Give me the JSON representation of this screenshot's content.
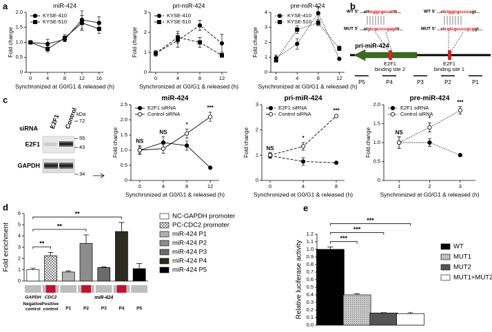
{
  "panel_labels": [
    "a",
    "b",
    "c",
    "d",
    "e"
  ],
  "diagram": {
    "sequences": [
      {
        "label": "WT 5'",
        "parts": [
          "...att",
          "tcggcgccatt",
          "tt..."
        ]
      },
      {
        "label": "MUT 5'",
        "parts": [
          "...at",
          "gtcgccccgagt",
          "tt..."
        ]
      },
      {
        "label": "WT 5'",
        "parts": [
          "...ct",
          "ctggcgcccca",
          "gt..."
        ]
      },
      {
        "label": "MUT 5'",
        "parts": [
          "...ct",
          "cgtcgccccgcg",
          "gt..."
        ]
      }
    ],
    "gene": "pri-miR-424",
    "sites": [
      {
        "name": "E2F1",
        "detail": "binding site 2"
      },
      {
        "name": "E2F1",
        "detail": "binding site 1"
      }
    ],
    "primers": [
      "P5",
      "P4",
      "P3",
      "P2",
      "P1"
    ]
  },
  "blot": {
    "treatment": "siRNA",
    "lanes": [
      "E2F1",
      "Control"
    ],
    "unit": "kDa",
    "markers": [
      "72",
      "55",
      "43",
      "34"
    ],
    "proteins": [
      "E2F1",
      "GAPDH"
    ]
  },
  "chart_data": [
    {
      "type": "line",
      "title": "miR-424",
      "xlabel": "Synchronized at G0/G1 & released (h)",
      "ylabel": "Fold change",
      "line_style": "solid",
      "legend": "upper left",
      "x": [
        0,
        4,
        8,
        12,
        16
      ],
      "xlim": [
        -1,
        17
      ],
      "xticks": [
        0,
        4,
        8,
        12,
        16
      ],
      "ylim": [
        0,
        2
      ],
      "yticks": [
        0,
        0.5,
        {
          "value": 1,
          "label": "1.0"
        },
        1.5,
        {
          "value": 2,
          "label": "2.0"
        }
      ],
      "series": [
        {
          "name": "KYSE-410",
          "color": "#000000",
          "marker": "circle",
          "values": [
            1.0,
            0.95,
            1.1,
            1.75,
            1.65
          ],
          "errors": [
            0.05,
            0.15,
            0.08,
            0.3,
            0.2
          ]
        },
        {
          "name": "KYSE-510",
          "color": "#000000",
          "marker": "square",
          "values": [
            1.0,
            0.78,
            1.15,
            1.65,
            1.45
          ],
          "errors": [
            0.05,
            0.1,
            0.1,
            0.25,
            0.15
          ]
        }
      ]
    },
    {
      "type": "line",
      "title": "pri-miR-424",
      "xlabel": "Synchronized at G0/G1 & released (h)",
      "ylabel": "Fold change",
      "line_style": "dashed",
      "legend": "upper left",
      "x": [
        0,
        4,
        8,
        12
      ],
      "xlim": [
        -1,
        13
      ],
      "xticks": [
        0,
        4,
        8,
        12
      ],
      "ylim": [
        0,
        3
      ],
      "yticks": [
        0,
        1,
        2,
        3
      ],
      "series": [
        {
          "name": "KYSE-410",
          "color": "#000000",
          "marker": "circle",
          "values": [
            0.95,
            1.6,
            2.35,
            1.45
          ],
          "errors": [
            0.15,
            0.35,
            0.25,
            0.45
          ]
        },
        {
          "name": "KYSE-510",
          "color": "#000000",
          "marker": "square",
          "values": [
            0.95,
            1.75,
            1.5,
            0.85
          ],
          "errors": [
            0.1,
            0.3,
            0.25,
            0.1
          ]
        }
      ]
    },
    {
      "type": "line",
      "title": "pre-miR-424",
      "xlabel": "Synchronized at G0/G1 & released (h)",
      "ylabel": "Fold change",
      "line_style": "dotted",
      "legend": "upper left",
      "x": [
        0,
        4,
        8,
        12
      ],
      "xlim": [
        -1,
        13
      ],
      "xticks": [
        0,
        4,
        8,
        12
      ],
      "ylim": [
        0,
        4
      ],
      "yticks": [
        0,
        1,
        2,
        3,
        4
      ],
      "series": [
        {
          "name": "KYSE-410",
          "color": "#000000",
          "marker": "circle",
          "values": [
            0.95,
            1.9,
            3.95,
            0.9
          ],
          "errors": [
            0.2,
            0.35,
            0.45,
            0.05
          ]
        },
        {
          "name": "KYSE-510",
          "color": "#000000",
          "marker": "square",
          "values": [
            0.8,
            2.85,
            3.3,
            1.6
          ],
          "errors": [
            0.1,
            0.25,
            0.2,
            0.15
          ]
        }
      ]
    },
    {
      "type": "line",
      "title": "miR-424",
      "xlabel": "Synchronized at G0/G1 & released (h)",
      "ylabel": "Fold change",
      "line_style": "solid",
      "legend": "upper left",
      "x": [
        0,
        4,
        8,
        12
      ],
      "xlim": [
        -1.5,
        13.5
      ],
      "xticks": [
        0,
        4,
        8,
        12
      ],
      "ylim": [
        0,
        2.5
      ],
      "yticks": [
        0,
        0.5,
        {
          "value": 1,
          "label": "1.0"
        },
        1.5,
        {
          "value": 2,
          "label": "2.0"
        },
        2.5
      ],
      "series": [
        {
          "name": "E2F1 siRNA",
          "color": "#000000",
          "marker": "circle",
          "filled": true,
          "values": [
            1.0,
            1.25,
            1.15,
            0.42
          ],
          "errors": [
            0.15,
            0.2,
            0.15,
            0.02
          ]
        },
        {
          "name": "Control siRNA",
          "color": "#000000",
          "marker": "circle",
          "filled": false,
          "values": [
            1.0,
            1.05,
            1.55,
            2.1
          ],
          "errors": [
            0.1,
            0.15,
            0.15,
            0.15
          ]
        }
      ],
      "annotations": [
        {
          "text": "NS",
          "x": 0
        },
        {
          "text": "NS",
          "x": 4
        },
        {
          "text": "*",
          "x": 8
        },
        {
          "text": "***",
          "x": 12
        }
      ]
    },
    {
      "type": "line",
      "title": "pri-miR-424",
      "xlabel": "Synchronized at G0/G1 & released (h)",
      "ylabel": "Fold change",
      "line_style": "dashed",
      "legend": "upper left",
      "x": [
        0,
        4,
        8
      ],
      "xlim": [
        -1,
        9
      ],
      "xticks": [
        0,
        4,
        8
      ],
      "ylim": [
        0,
        3
      ],
      "yticks": [
        0,
        1,
        2,
        3
      ],
      "series": [
        {
          "name": "E2F1 siRNA",
          "color": "#000000",
          "marker": "circle",
          "filled": true,
          "values": [
            0.98,
            0.75,
            0.7
          ],
          "errors": [
            0.1,
            0.15,
            0.03
          ]
        },
        {
          "name": "Control siRNA",
          "color": "#000000",
          "marker": "circle",
          "filled": false,
          "values": [
            1.0,
            1.35,
            2.55
          ],
          "errors": [
            0.1,
            0.15,
            0.05
          ]
        }
      ],
      "annotations": [
        {
          "text": "NS",
          "x": 0
        },
        {
          "text": "*",
          "x": 4
        },
        {
          "text": "***",
          "x": 8
        }
      ]
    },
    {
      "type": "line",
      "title": "pre-miR-424",
      "xlabel": "Synchronized at G0/G1 & released (h)",
      "ylabel": "Fold change",
      "line_style": "dotted",
      "legend": "upper left",
      "x": [
        1,
        2,
        3
      ],
      "xlim": [
        0.5,
        3.5
      ],
      "xticks": [
        1,
        2,
        3
      ],
      "ylim": [
        0,
        2
      ],
      "yticks": [
        0,
        0.5,
        {
          "value": 1,
          "label": "1.0"
        },
        1.5,
        {
          "value": 2,
          "label": "2.0"
        }
      ],
      "series": [
        {
          "name": "E2F1 siRNA",
          "color": "#000000",
          "marker": "circle",
          "filled": true,
          "values": [
            1.0,
            1.0,
            0.67
          ],
          "errors": [
            0.15,
            0.1,
            0.02
          ]
        },
        {
          "name": "Control siRNA",
          "color": "#000000",
          "marker": "circle",
          "filled": false,
          "values": [
            1.0,
            1.4,
            1.85
          ],
          "errors": [
            0.15,
            0.12,
            0.1
          ]
        }
      ],
      "annotations": [
        {
          "text": "NS",
          "x": 1
        },
        {
          "text": "*",
          "x": 2
        },
        {
          "text": "***",
          "x": 3
        }
      ]
    },
    {
      "type": "bar",
      "ylabel": "Fold enrichment",
      "ylim": [
        0,
        6
      ],
      "yticks": [
        0,
        1,
        2,
        3,
        4,
        5,
        6
      ],
      "legend": "right",
      "series": [
        {
          "name": "NC-GAPDH promoter",
          "color": "#ffffff",
          "values": [
            1.0
          ],
          "errors": [
            0.15
          ]
        },
        {
          "name": "PC-CDC2 promoter",
          "color": "#ffffff",
          "pattern": "crosshatch",
          "values": [
            2.25
          ],
          "errors": [
            0.3
          ]
        },
        {
          "name": "miR-424 P1",
          "color": "#b0b0b0",
          "values": [
            0.8
          ],
          "errors": [
            0.1
          ]
        },
        {
          "name": "miR-424 P2",
          "color": "#8c8c8c",
          "values": [
            3.35
          ],
          "errors": [
            0.75
          ]
        },
        {
          "name": "miR-424 P3",
          "color": "#6b6b6b",
          "values": [
            1.2
          ],
          "errors": [
            0.05
          ]
        },
        {
          "name": "miR-424 P4",
          "color": "#2d2d1e",
          "values": [
            4.4
          ],
          "errors": [
            0.8
          ]
        },
        {
          "name": "miR-424 P5",
          "color": "#000000",
          "values": [
            1.1
          ],
          "errors": [
            0.45
          ]
        }
      ],
      "brackets": [
        {
          "text": "**",
          "from": "NC-GAPDH promoter",
          "to": "PC-CDC2 promoter"
        },
        {
          "text": "**",
          "from": "NC-GAPDH promoter",
          "to": "miR-424 P2"
        },
        {
          "text": "**",
          "from": "NC-GAPDH promoter",
          "to": "miR-424 P4"
        }
      ],
      "track": {
        "labels": [
          {
            "name": "GAPDH",
            "note": "Negative control"
          },
          {
            "name": "CDC2",
            "note": "Positive control"
          },
          {
            "name": "P1"
          },
          {
            "name": "P2"
          },
          {
            "name": "P3"
          },
          {
            "name": "P4"
          },
          {
            "name": "P5"
          }
        ],
        "group": "miR-424"
      }
    },
    {
      "type": "bar",
      "ylabel": "Relative luciferase activity",
      "ylim": [
        0,
        1.2
      ],
      "yticks": [
        {
          "value": 0,
          "label": "0.0"
        },
        0.1,
        0.2,
        0.3,
        0.4,
        0.5,
        0.6,
        0.7,
        0.8,
        0.9,
        {
          "value": 1,
          "label": "1.0"
        },
        1.1,
        1.2
      ],
      "legend": "right",
      "series": [
        {
          "name": "WT",
          "color": "#000000",
          "values": [
            1.0
          ],
          "errors": [
            0.03
          ]
        },
        {
          "name": "MUT1",
          "color": "#bbbbbb",
          "pattern": "dots",
          "values": [
            0.4
          ],
          "errors": [
            0.015
          ]
        },
        {
          "name": "MUT2",
          "color": "#555555",
          "values": [
            0.16
          ],
          "errors": [
            0.005
          ]
        },
        {
          "name": "MUT1+MUT2",
          "color": "#ffffff",
          "values": [
            0.15
          ],
          "errors": [
            0.015
          ]
        }
      ],
      "brackets": [
        {
          "text": "***",
          "from": "WT",
          "to": "MUT1"
        },
        {
          "text": "***",
          "from": "WT",
          "to": "MUT2"
        },
        {
          "text": "***",
          "from": "WT",
          "to": "MUT1+MUT2"
        }
      ]
    }
  ]
}
